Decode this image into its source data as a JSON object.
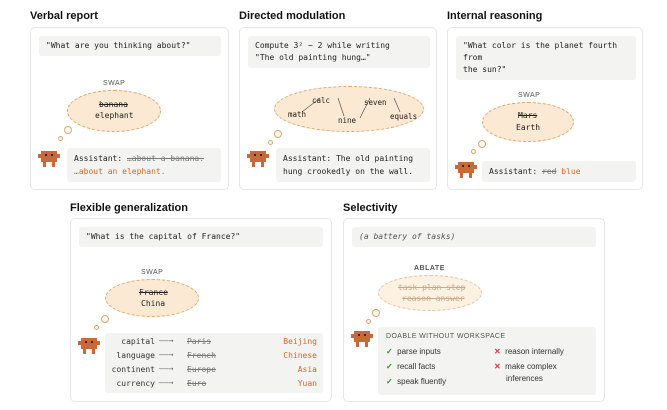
{
  "panels": {
    "verbal": {
      "title": "Verbal report",
      "prompt": "\"What are you thinking about?\"",
      "swap_label": "SWAP",
      "old_word": "banana",
      "new_word": "elephant",
      "resp_prefix": "Assistant: ",
      "resp_strike": "…about a banana.",
      "resp_new": "…about an elephant."
    },
    "directed": {
      "title": "Directed modulation",
      "prompt_line1": "Compute 3² − 2 while writing",
      "prompt_line2": "\"The old painting hung…\"",
      "words": [
        "math",
        "calc",
        "nine",
        "seven",
        "equals"
      ],
      "resp_line1": "Assistant: The old painting",
      "resp_line2": "hung crookedly on the wall."
    },
    "internal": {
      "title": "Internal reasoning",
      "prompt_line1": "\"What color is the planet fourth from",
      "prompt_line2": "the sun?\"",
      "swap_label": "SWAP",
      "old_word": "Mars",
      "new_word": "Earth",
      "resp_prefix": "Assistant: ",
      "resp_strike": "red",
      "resp_new": "blue"
    },
    "flexible": {
      "title": "Flexible generalization",
      "prompt": "\"What is the capital of France?\"",
      "swap_label": "SWAP",
      "old_word": "France",
      "new_word": "China",
      "rows": [
        {
          "key": "capital",
          "old": "Paris",
          "new": "Beijing"
        },
        {
          "key": "language",
          "old": "French",
          "new": "Chinese"
        },
        {
          "key": "continent",
          "old": "Europe",
          "new": "Asia"
        },
        {
          "key": "currency",
          "old": "Euro",
          "new": "Yuan"
        }
      ]
    },
    "selectivity": {
      "title": "Selectivity",
      "prompt": "(a battery of tasks)",
      "ablate_label": "ABLATE",
      "ablated": [
        "task plan step",
        "reason answer"
      ],
      "box_heading": "DOABLE WITHOUT WORKSPACE",
      "doable": [
        "parse inputs",
        "recall facts",
        "speak fluently"
      ],
      "not_doable": [
        "reason internally",
        "make complex",
        "inferences"
      ]
    }
  },
  "colors": {
    "accent": "#cc6a2c",
    "cloud_fill": "#fbe9d3",
    "robot": "#c8693a",
    "check": "#2f8f2f",
    "cross": "#d83b3b"
  }
}
